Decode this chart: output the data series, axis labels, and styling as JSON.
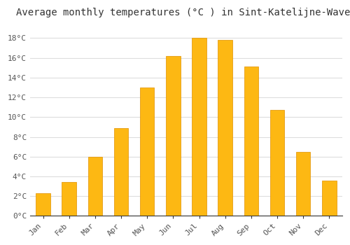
{
  "title": "Average monthly temperatures (°C ) in Sint-Katelijne-Waver",
  "months": [
    "Jan",
    "Feb",
    "Mar",
    "Apr",
    "May",
    "Jun",
    "Jul",
    "Aug",
    "Sep",
    "Oct",
    "Nov",
    "Dec"
  ],
  "values": [
    2.3,
    3.4,
    6.0,
    8.9,
    13.0,
    16.2,
    18.0,
    17.8,
    15.1,
    10.7,
    6.5,
    3.6
  ],
  "bar_color": "#FDB813",
  "bar_edge_color": "#E09000",
  "background_color": "#FFFFFF",
  "grid_color": "#DDDDDD",
  "ylim": [
    0,
    19.5
  ],
  "yticks": [
    0,
    2,
    4,
    6,
    8,
    10,
    12,
    14,
    16,
    18
  ],
  "title_fontsize": 10,
  "tick_fontsize": 8,
  "font_family": "monospace",
  "bar_width": 0.55
}
